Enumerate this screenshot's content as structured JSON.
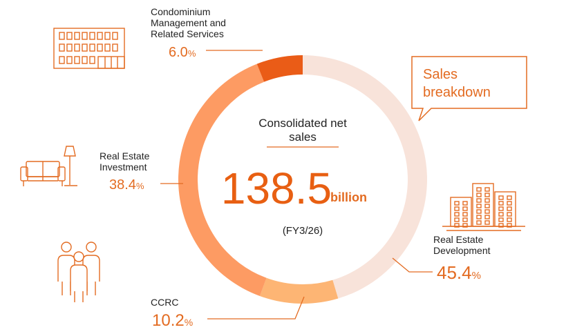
{
  "chart_data": {
    "type": "pie",
    "style": "donut",
    "title": "Sales breakdown",
    "center": {
      "heading_line1": "Consolidated net",
      "heading_line2": "sales",
      "value": "138.5",
      "unit": "billion",
      "period": "(FY3/26)"
    },
    "slices": [
      {
        "label_lines": [
          "Real Estate",
          "Development"
        ],
        "value": 45.4,
        "display": "45.4",
        "color": "#f8e3da"
      },
      {
        "label_lines": [
          "CCRC"
        ],
        "value": 10.2,
        "display": "10.2",
        "color": "#fdb574"
      },
      {
        "label_lines": [
          "Real Estate",
          "Investment"
        ],
        "value": 38.4,
        "display": "38.4",
        "color": "#fd9b63"
      },
      {
        "label_lines": [
          "Condominium",
          "Management and",
          "Related Services"
        ],
        "value": 6.0,
        "display": "6.0",
        "color": "#ea5c17"
      }
    ],
    "percent_symbol": "%"
  },
  "colors": {
    "accent": "#e36b21",
    "icon_stroke": "#e36b21",
    "text": "#222222"
  },
  "icons": [
    "office-building-icon",
    "sofa-lamp-icon",
    "people-group-icon",
    "city-buildings-icon"
  ]
}
